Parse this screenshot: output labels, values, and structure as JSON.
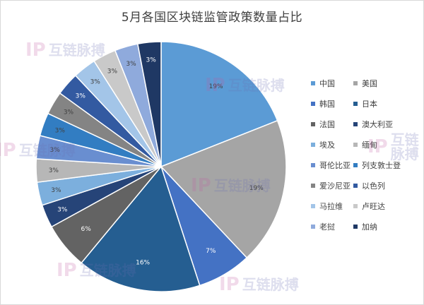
{
  "chart_data": {
    "type": "pie",
    "title": "5月各国区块链监管政策数量占比",
    "series": [
      {
        "name": "中国",
        "value": 19,
        "label": "19%",
        "color": "#5b9bd5"
      },
      {
        "name": "美国",
        "value": 19,
        "label": "19%",
        "color": "#a5a5a5"
      },
      {
        "name": "韩国",
        "value": 7,
        "label": "7%",
        "color": "#4472c4"
      },
      {
        "name": "日本",
        "value": 16,
        "label": "16%",
        "color": "#255e91"
      },
      {
        "name": "法国",
        "value": 6,
        "label": "6%",
        "color": "#636363"
      },
      {
        "name": "澳大利亚",
        "value": 3,
        "label": "3%",
        "color": "#264478"
      },
      {
        "name": "埃及",
        "value": 3,
        "label": "3%",
        "color": "#7cafdd"
      },
      {
        "name": "缅甸",
        "value": 3,
        "label": "3%",
        "color": "#b7b7b7"
      },
      {
        "name": "哥伦比亚",
        "value": 3,
        "label": "3%",
        "color": "#698ed0"
      },
      {
        "name": "列支敦士登",
        "value": 3,
        "label": "3%",
        "color": "#327dc2"
      },
      {
        "name": "爱沙尼亚",
        "value": 3,
        "label": "3%",
        "color": "#848484"
      },
      {
        "name": "以色列",
        "value": 3,
        "label": "3%",
        "color": "#335aa1"
      },
      {
        "name": "马拉维",
        "value": 3,
        "label": "3%",
        "color": "#a3c5e8"
      },
      {
        "name": "卢旺达",
        "value": 3,
        "label": "3%",
        "color": "#c9c9c9"
      },
      {
        "name": "老挝",
        "value": 3,
        "label": "3%",
        "color": "#8faadc"
      },
      {
        "name": "加纳",
        "value": 3,
        "label": "3%",
        "color": "#1f3864"
      }
    ],
    "legend_position": "right"
  },
  "watermark": {
    "text": "互链脉搏",
    "logo": "IP",
    "color": "#c25aa3"
  }
}
